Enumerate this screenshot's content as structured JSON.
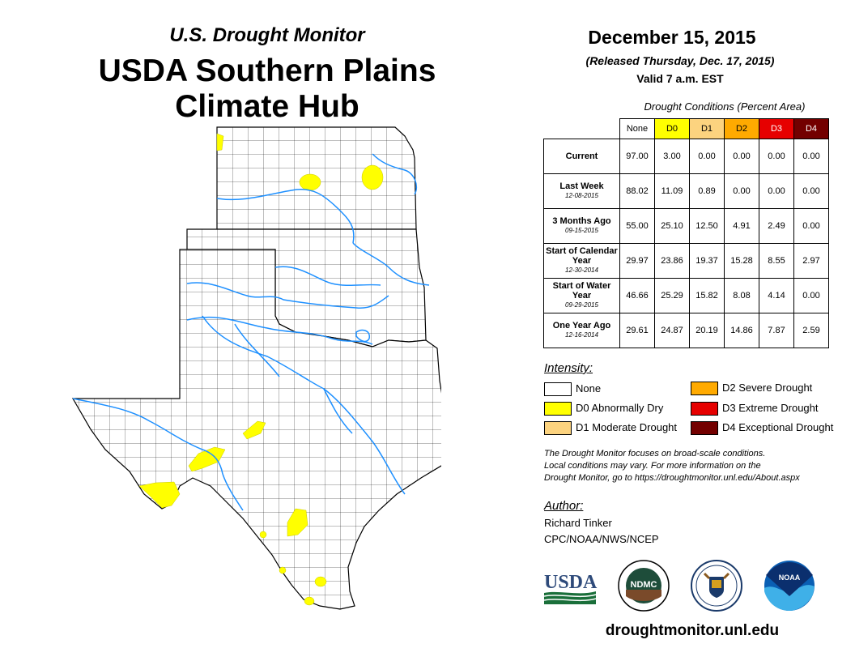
{
  "header": {
    "subtitle": "U.S. Drought Monitor",
    "title_line1": "USDA Southern Plains",
    "title_line2": "Climate Hub"
  },
  "info": {
    "date": "December 15, 2015",
    "released": "(Released Thursday, Dec. 17, 2015)",
    "valid": "Valid 7 a.m. EST"
  },
  "table": {
    "title": "Drought Conditions (Percent Area)",
    "columns": [
      "None",
      "D0",
      "D1",
      "D2",
      "D3",
      "D4"
    ],
    "column_colors": [
      "#ffffff",
      "#ffff00",
      "#fcd37f",
      "#ffaa00",
      "#e60000",
      "#730000"
    ],
    "rows": [
      {
        "label": "Current",
        "date": "",
        "values": [
          "97.00",
          "3.00",
          "0.00",
          "0.00",
          "0.00",
          "0.00"
        ]
      },
      {
        "label": "Last Week",
        "date": "12-08-2015",
        "values": [
          "88.02",
          "11.09",
          "0.89",
          "0.00",
          "0.00",
          "0.00"
        ]
      },
      {
        "label": "3 Months Ago",
        "date": "09-15-2015",
        "values": [
          "55.00",
          "25.10",
          "12.50",
          "4.91",
          "2.49",
          "0.00"
        ]
      },
      {
        "label": "Start of Calendar Year",
        "date": "12-30-2014",
        "values": [
          "29.97",
          "23.86",
          "19.37",
          "15.28",
          "8.55",
          "2.97"
        ]
      },
      {
        "label": "Start of Water Year",
        "date": "09-29-2015",
        "values": [
          "46.66",
          "25.29",
          "15.82",
          "8.08",
          "4.14",
          "0.00"
        ]
      },
      {
        "label": "One Year Ago",
        "date": "12-16-2014",
        "values": [
          "29.61",
          "24.87",
          "20.19",
          "14.86",
          "7.87",
          "2.59"
        ]
      }
    ]
  },
  "legend": {
    "title": "Intensity:",
    "items": [
      {
        "label": "None",
        "color": "#ffffff"
      },
      {
        "label": "D0 Abnormally Dry",
        "color": "#ffff00"
      },
      {
        "label": "D1 Moderate Drought",
        "color": "#fcd37f"
      },
      {
        "label": "D2 Severe Drought",
        "color": "#ffaa00"
      },
      {
        "label": "D3 Extreme Drought",
        "color": "#e60000"
      },
      {
        "label": "D4 Exceptional Drought",
        "color": "#730000"
      }
    ]
  },
  "note": {
    "line1": "The Drought Monitor focuses on broad-scale conditions.",
    "line2": "Local conditions may vary. For more information on the",
    "line3": "Drought Monitor, go to https://droughtmonitor.unl.edu/About.aspx"
  },
  "author": {
    "title": "Author:",
    "name": "Richard Tinker",
    "org": "CPC/NOAA/NWS/NCEP"
  },
  "logos": {
    "usda": "USDA",
    "ndmc": "NDMC",
    "noaa": "NOAA"
  },
  "footer_url": "droughtmonitor.unl.edu",
  "map": {
    "regions": [
      "Kansas",
      "Oklahoma",
      "Texas"
    ],
    "colors": {
      "border": "#000000",
      "river": "#1e90ff",
      "d0": "#ffff00"
    }
  }
}
